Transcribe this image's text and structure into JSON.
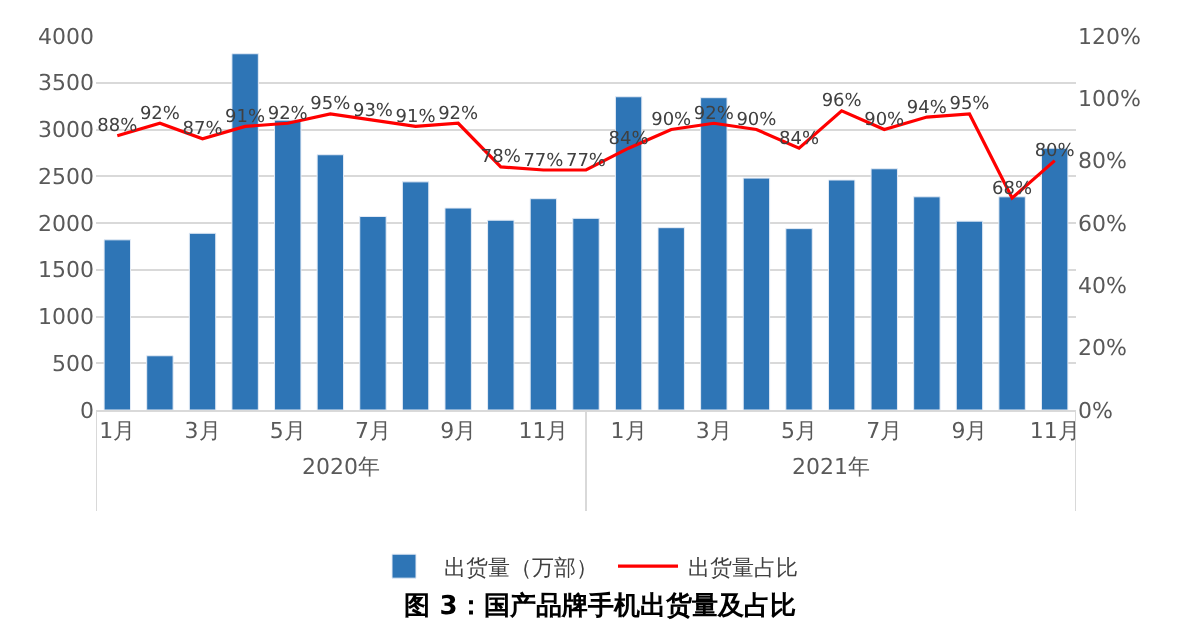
{
  "chart_data": {
    "type": "bar",
    "title": "图 3：国产品牌手机出货量及占比",
    "categories": [
      "1月",
      null,
      "3月",
      null,
      "5月",
      null,
      "7月",
      null,
      "9月",
      null,
      "11月",
      null,
      "1月",
      null,
      "3月",
      null,
      "5月",
      null,
      "7月",
      null,
      "9月",
      null,
      "11月"
    ],
    "series": [
      {
        "name": "出货量（万部）",
        "color": "#2e75b6",
        "values": [
          1820,
          580,
          1890,
          3810,
          3100,
          2730,
          2070,
          2440,
          2160,
          2030,
          2260,
          2050,
          3350,
          1950,
          3340,
          2480,
          1940,
          2460,
          2580,
          2280,
          2020,
          2280,
          2800
        ]
      },
      {
        "name": "出货量占比",
        "type": "line",
        "axis": "y2",
        "color": "#ff0000",
        "marker": "none",
        "values": [
          88,
          92,
          87,
          91,
          92,
          95,
          93,
          91,
          92,
          78,
          77,
          77,
          84,
          90,
          92,
          90,
          84,
          96,
          90,
          94,
          95,
          68,
          80
        ],
        "value_labels": [
          "88%",
          "92%",
          "87%",
          "91%",
          "92%",
          "95%",
          "93%",
          "91%",
          "92%",
          "78%",
          "77%",
          "77%",
          "84%",
          "90%",
          "92%",
          "90%",
          "84%",
          "96%",
          "90%",
          "94%",
          "95%",
          "68%",
          "80%"
        ]
      }
    ],
    "ylim": [
      0,
      4000
    ],
    "yticks": [
      0,
      500,
      1000,
      1500,
      2000,
      2500,
      3000,
      3500,
      4000
    ],
    "y2lim": [
      0,
      120
    ],
    "y2ticks": [
      {
        "value": 0,
        "label": "0%"
      },
      {
        "value": 20,
        "label": "20%"
      },
      {
        "value": 40,
        "label": "40%"
      },
      {
        "value": 60,
        "label": "60%"
      },
      {
        "value": 80,
        "label": "80%"
      },
      {
        "value": 100,
        "label": "100%"
      },
      {
        "value": 120,
        "label": "120%"
      }
    ],
    "annotations": [
      "2020年",
      "2021年"
    ],
    "grid": "y",
    "legend": "bottom"
  }
}
